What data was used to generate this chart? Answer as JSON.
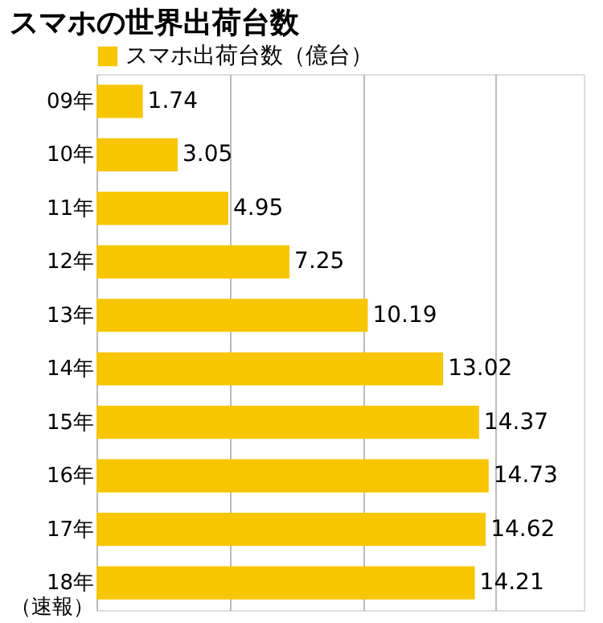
{
  "chart_data": {
    "type": "bar",
    "orientation": "horizontal",
    "title": "スマホの世界出荷台数",
    "categories": [
      "09年",
      "10年",
      "11年",
      "12年",
      "13年",
      "14年",
      "15年",
      "16年",
      "17年",
      "18年（速報）"
    ],
    "series": [
      {
        "name": "スマホ出荷台数（億台）",
        "color": "#f7c600",
        "values": [
          1.74,
          3.05,
          4.95,
          7.25,
          10.19,
          13.02,
          14.37,
          14.73,
          14.62,
          14.21
        ]
      }
    ],
    "xlim": [
      0,
      18.3
    ],
    "xticks": [
      {
        "value": 0,
        "label": null
      },
      {
        "value": 5,
        "label": null
      },
      {
        "value": 10,
        "label": null
      },
      {
        "value": 15,
        "label": null
      }
    ],
    "tick_labels": "y",
    "grid": "x",
    "legend": "top left",
    "data_labels": true
  }
}
